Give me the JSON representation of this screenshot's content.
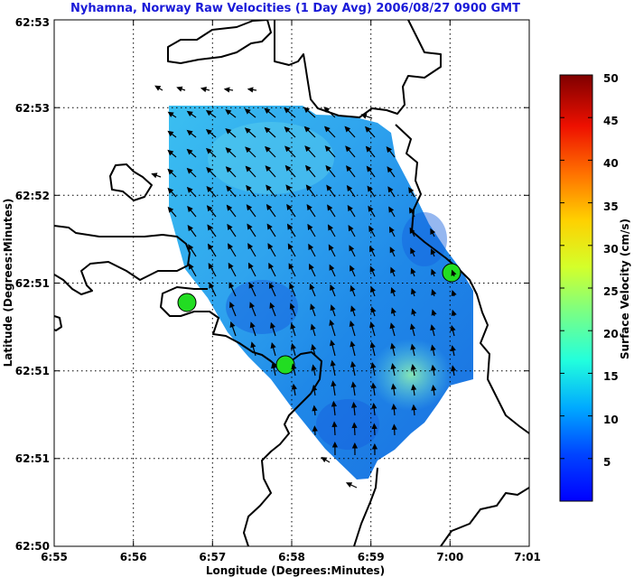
{
  "chart_data": {
    "type": "vector-field-map",
    "title": "Nyhamna, Norway Raw Velocities (1 Day Avg) 2006/08/27 0900 GMT",
    "xlabel": "Longitude (Degrees:Minutes)",
    "ylabel": "Latitude (Degrees:Minutes)",
    "x_ticks": [
      "6:55",
      "6:56",
      "6:57",
      "6:58",
      "6:59",
      "7:00",
      "7:01"
    ],
    "y_ticks": [
      "62:53",
      "62:53",
      "62:52",
      "62:51",
      "62:51",
      "62:51",
      "62:50"
    ],
    "grid": true,
    "colorbar": {
      "label": "Surface Velocity (cm/s)",
      "ticks": [
        5,
        10,
        15,
        20,
        25,
        30,
        35,
        40,
        45,
        50
      ],
      "range": [
        0,
        50
      ],
      "colormap": "jet"
    },
    "sites": [
      {
        "lon_min": 1.7,
        "lat_frac": 0.397,
        "color": "#22dd22"
      },
      {
        "lon_min": 3.0,
        "lat_frac": 0.219,
        "color": "#22dd22"
      },
      {
        "lon_min": 5.0,
        "lat_frac": 0.445,
        "color": "#22dd22"
      }
    ]
  }
}
